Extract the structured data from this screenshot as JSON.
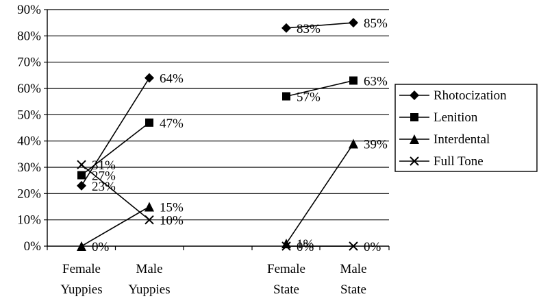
{
  "chart_data": {
    "type": "line",
    "title": "",
    "xlabel": "",
    "ylabel": "",
    "ylim": [
      0,
      90
    ],
    "y_ticks": [
      "0%",
      "10%",
      "20%",
      "30%",
      "40%",
      "50%",
      "60%",
      "70%",
      "80%",
      "90%"
    ],
    "grid": "horizontal major lines",
    "legend_position": "right",
    "categories": [
      [
        "Female",
        "Yuppies"
      ],
      [
        "Male",
        "Yuppies"
      ],
      [
        "Female",
        "State"
      ],
      [
        "Male",
        "State"
      ]
    ],
    "groups": [
      [
        0,
        1
      ],
      [
        2,
        3
      ]
    ],
    "series": [
      {
        "name": "Rhotocization",
        "marker": "diamond",
        "values": [
          23,
          64,
          83,
          85
        ],
        "labels": [
          "23%",
          "64%",
          "83%",
          "85%"
        ]
      },
      {
        "name": "Lenition",
        "marker": "square",
        "values": [
          27,
          47,
          57,
          63
        ],
        "labels": [
          "27%",
          "47%",
          "57%",
          "63%"
        ]
      },
      {
        "name": "Interdental",
        "marker": "triangle",
        "values": [
          0,
          15,
          1,
          39
        ],
        "labels": [
          "0%",
          "15%",
          "1%",
          "39%"
        ]
      },
      {
        "name": "Full Tone",
        "marker": "x",
        "values": [
          31,
          10,
          0,
          0
        ],
        "labels": [
          "31%",
          "10%",
          "0%",
          "0%"
        ]
      }
    ]
  }
}
